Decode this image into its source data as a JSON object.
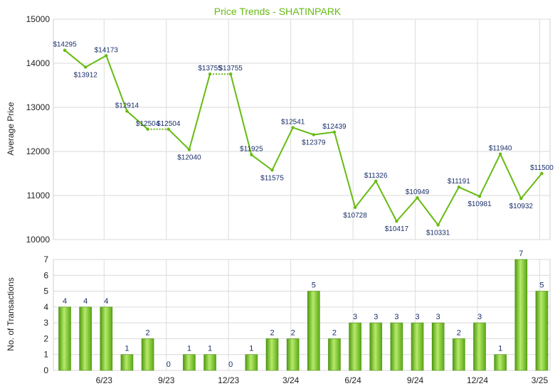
{
  "chart_data": [
    {
      "type": "line",
      "title": "Price Trends - SHATINPARK",
      "ylabel": "Average Price",
      "ylim": [
        10000,
        15000
      ],
      "yticks": [
        10000,
        11000,
        12000,
        13000,
        14000,
        15000
      ],
      "grid": true,
      "line_color": "#66bb11",
      "point_labels": [
        "$14295",
        "$13912",
        "$14173",
        "$12914",
        "$12504",
        "$12504",
        "$12040",
        "$13755",
        "$13755",
        "$11925",
        "$11575",
        "$12541",
        "$12379",
        "$12439",
        "$10728",
        "$11326",
        "$10417",
        "$10949",
        "$10331",
        "$11191",
        "$10981",
        "$11940",
        "$10932",
        "$11500"
      ],
      "values": [
        14295,
        13912,
        14173,
        12914,
        12504,
        12504,
        12040,
        13755,
        13755,
        11925,
        11575,
        12541,
        12379,
        12439,
        10728,
        11326,
        10417,
        10949,
        10331,
        11191,
        10981,
        11940,
        10932,
        11500
      ],
      "no_transaction_months": [
        5,
        8
      ]
    },
    {
      "type": "bar",
      "ylabel": "No. of Transactions",
      "ylim": [
        0,
        7
      ],
      "yticks": [
        0,
        1,
        2,
        3,
        4,
        5,
        6,
        7
      ],
      "grid": true,
      "bar_color": "#66bb11",
      "categories": [
        "",
        "",
        "6/23",
        "",
        "",
        "9/23",
        "",
        "",
        "12/23",
        "",
        "",
        "3/24",
        "",
        "",
        "6/24",
        "",
        "",
        "9/24",
        "",
        "",
        "12/24",
        "",
        "",
        "3/25"
      ],
      "values": [
        4,
        4,
        4,
        1,
        2,
        0,
        1,
        1,
        0,
        1,
        2,
        2,
        5,
        2,
        3,
        3,
        3,
        3,
        3,
        2,
        3,
        1,
        7,
        5
      ]
    }
  ]
}
